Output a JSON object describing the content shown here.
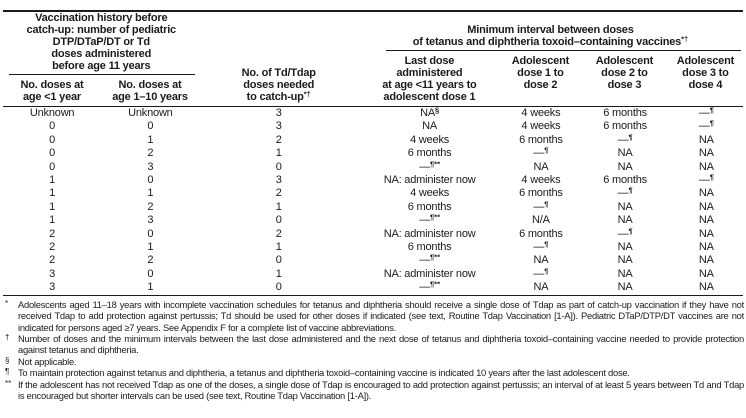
{
  "page": {
    "background_color": "#ffffff",
    "text_color": "#1b1b1b",
    "rule_color": "#1b1b1b"
  },
  "table": {
    "left_group_title": "Vaccination history before\ncatch-up: number of pediatric\nDTP/DTaP/DT or Td\ndoses administered\nbefore age 11 years",
    "right_group_title": "Minimum interval between doses\nof tetanus and diphtheria toxoid–containing vaccines^{*†}",
    "col_headers": {
      "doses_under_1yr": "No. doses at\nage <1 year",
      "doses_1_10yr": "No. doses at\nage 1–10 years",
      "td_tdap_needed": "No. of Td/Tdap\ndoses needed\nto catch-up^{*†}",
      "last_dose_to_dose1": "Last dose\nadministered\nat age <11 years to\nadolescent dose 1",
      "dose1_to_dose2": "Adolescent\ndose 1 to\ndose 2",
      "dose2_to_dose3": "Adolescent\ndose 2 to\ndose 3",
      "dose3_to_dose4": "Adolescent\ndose 3 to\ndose 4"
    },
    "rows": [
      [
        "Unknown",
        "Unknown",
        "3",
        "NA^{§}",
        "4 weeks",
        "6 months",
        "—^{¶}"
      ],
      [
        "0",
        "0",
        "3",
        "NA",
        "4 weeks",
        "6 months",
        "—^{¶}"
      ],
      [
        "0",
        "1",
        "2",
        "4 weeks",
        "6 months",
        "—^{¶}",
        "NA"
      ],
      [
        "0",
        "2",
        "1",
        "6 months",
        "—^{¶}",
        "NA",
        "NA"
      ],
      [
        "0",
        "3",
        "0",
        "—^{¶**}",
        "NA",
        "NA",
        "NA"
      ],
      [
        "1",
        "0",
        "3",
        "NA: administer now",
        "4 weeks",
        "6 months",
        "—^{¶}"
      ],
      [
        "1",
        "1",
        "2",
        "4 weeks",
        "6 months",
        "—^{¶}",
        "NA"
      ],
      [
        "1",
        "2",
        "1",
        "6 months",
        "—^{¶}",
        "NA",
        "NA"
      ],
      [
        "1",
        "3",
        "0",
        "—^{¶**}",
        "N/A",
        "NA",
        "NA"
      ],
      [
        "2",
        "0",
        "2",
        "NA: administer now",
        "6 months",
        "—^{¶}",
        "NA"
      ],
      [
        "2",
        "1",
        "1",
        "6 months",
        "—^{¶}",
        "NA",
        "NA"
      ],
      [
        "2",
        "2",
        "0",
        "—^{¶**}",
        "NA",
        "NA",
        "NA"
      ],
      [
        "3",
        "0",
        "1",
        "NA: administer now",
        "—^{¶}",
        "NA",
        "NA"
      ],
      [
        "3",
        "1",
        "0",
        "—^{¶**}",
        "NA",
        "NA",
        "NA"
      ]
    ]
  },
  "footnotes": [
    {
      "id": "asterisk",
      "marker": "*",
      "text": "Adolescents aged 11–18 years with incomplete vaccination schedules for tetanus and diphtheria should receive a single dose of Tdap as part of catch-up vaccination if they have not received Tdap to add protection against pertussis; Td should be used for other doses if indicated (see text, Routine Tdap Vaccination [1-A]). Pediatric DTaP/DTP/DT vaccines are not indicated for persons aged ≥7 years. See Appendix F for a complete list of vaccine abbreviations."
    },
    {
      "id": "dagger",
      "marker": "†",
      "text": "Number of doses and the minimum intervals between the last dose administered and the next dose of tetanus and diphtheria toxoid–containing vaccine needed to provide protection against tetanus and diphtheria."
    },
    {
      "id": "section",
      "marker": "§",
      "text": "Not applicable."
    },
    {
      "id": "pilcrow",
      "marker": "¶",
      "text": "To maintain protection against tetanus and diphtheria, a tetanus and diphtheria toxoid–containing vaccine is indicated 10 years after the last adolescent dose."
    },
    {
      "id": "double-asterisk",
      "marker": "**",
      "text": "If the adolescent has not received Tdap as one of the doses, a single dose of Tdap is encouraged to add protection against pertussis; an interval of at least 5 years between Td and Tdap is encouraged but shorter intervals can be used (see text, Routine Tdap Vaccination [1-A])."
    }
  ]
}
